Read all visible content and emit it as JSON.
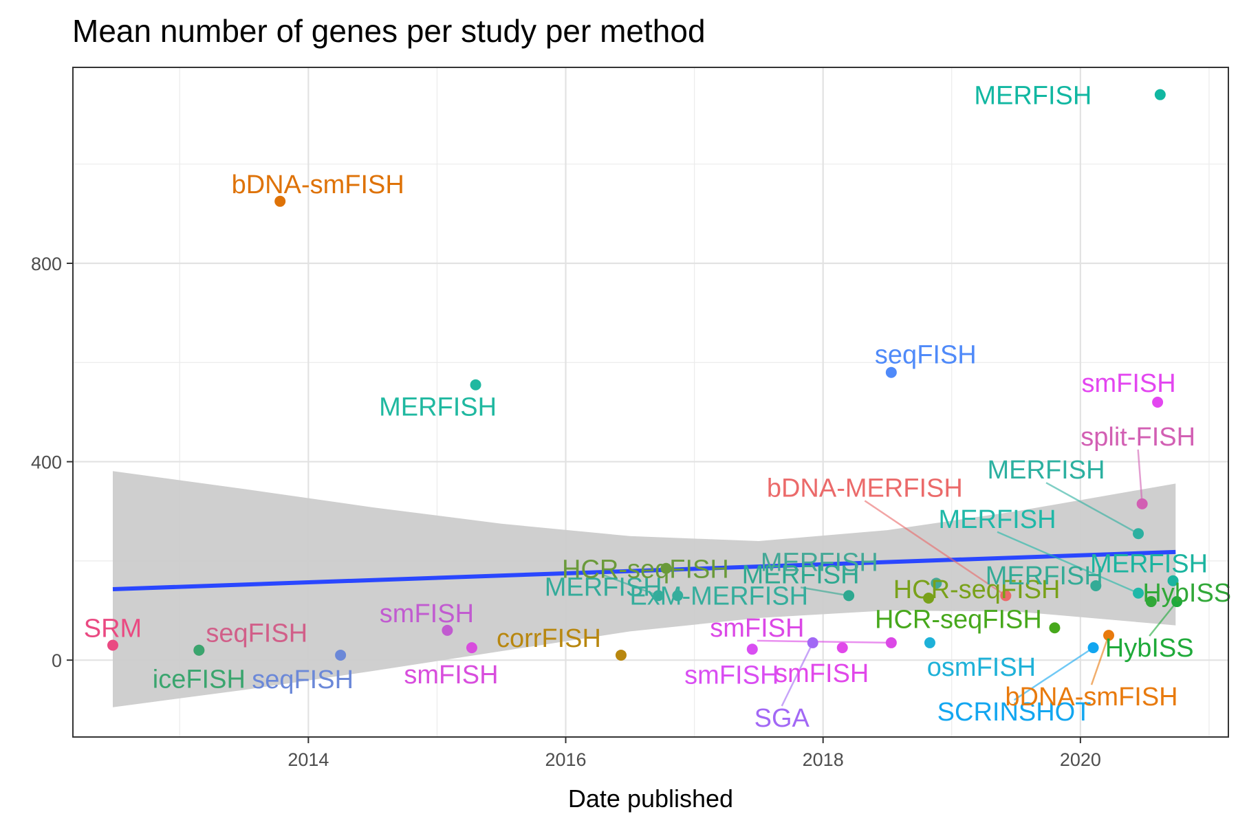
{
  "chart_data": {
    "type": "scatter",
    "title": "Mean number of genes per study per method",
    "xlabel": "Date published",
    "ylabel": "",
    "xlim": [
      2012.17,
      2021.15
    ],
    "ylim": [
      -155,
      1195
    ],
    "x_ticks": [
      2014,
      2016,
      2018,
      2020
    ],
    "x_tick_labels": [
      "2014",
      "2016",
      "2018",
      "2020"
    ],
    "y_ticks": [
      0,
      400,
      800
    ],
    "y_tick_labels": [
      "0",
      "400",
      "800"
    ],
    "grid": true,
    "legend": "none",
    "trend_line": {
      "method": "linear",
      "x": [
        2012.48,
        2020.74
      ],
      "y": [
        143,
        218
      ],
      "color": "#2a47ff"
    },
    "confidence_band": {
      "x": [
        2012.48,
        2013.5,
        2014.5,
        2015.5,
        2016.5,
        2017.5,
        2018.5,
        2019.5,
        2020.74
      ],
      "lower": [
        -95,
        -60,
        -22,
        18,
        58,
        85,
        100,
        98,
        70
      ],
      "upper": [
        381,
        345,
        308,
        275,
        250,
        240,
        262,
        300,
        356
      ],
      "color": "#cccccc"
    },
    "points": [
      {
        "x": 2012.48,
        "y": 30,
        "label": "SRM",
        "color": "#ea4a82"
      },
      {
        "x": 2013.15,
        "y": 20,
        "label": "seqFISH",
        "color": "#d15f89"
      },
      {
        "x": 2013.15,
        "y": 20,
        "label": "iceFISH",
        "color": "#3aa56e"
      },
      {
        "x": 2013.78,
        "y": 925,
        "label": "bDNA-smFISH",
        "color": "#de7207"
      },
      {
        "x": 2014.25,
        "y": 10,
        "label": "seqFISH",
        "color": "#6b88d8"
      },
      {
        "x": 2015.08,
        "y": 60,
        "label": "smFISH",
        "color": "#c15bd0"
      },
      {
        "x": 2015.27,
        "y": 25,
        "label": "smFISH",
        "color": "#d84ddd"
      },
      {
        "x": 2015.3,
        "y": 555,
        "label": "MERFISH",
        "color": "#1fb8a0"
      },
      {
        "x": 2016.43,
        "y": 10,
        "label": "corrFISH",
        "color": "#b8870f"
      },
      {
        "x": 2016.72,
        "y": 130,
        "label": "MERFISH",
        "color": "#34ab9a"
      },
      {
        "x": 2016.78,
        "y": 185,
        "label": "HCR-seqFISH",
        "color": "#6a9a3a"
      },
      {
        "x": 2016.87,
        "y": 130,
        "label": "ExM-MERFISH",
        "color": "#35ad9c"
      },
      {
        "x": 2017.45,
        "y": 22,
        "label": "smFISH",
        "color": "#d94ef2"
      },
      {
        "x": 2017.92,
        "y": 35,
        "label": "SGA",
        "color": "#a268f5"
      },
      {
        "x": 2018.15,
        "y": 25,
        "label": "smFISH",
        "color": "#e148ea"
      },
      {
        "x": 2018.2,
        "y": 130,
        "label": "MERFISH",
        "color": "#2ea890"
      },
      {
        "x": 2018.53,
        "y": 580,
        "label": "seqFISH",
        "color": "#4f8af9"
      },
      {
        "x": 2018.53,
        "y": 35,
        "label": "smFISH",
        "color": "#db48e6"
      },
      {
        "x": 2018.82,
        "y": 125,
        "label": "HCR-seqFISH",
        "color": "#79a11a"
      },
      {
        "x": 2018.83,
        "y": 35,
        "label": "osmFISH",
        "color": "#1eb1d8"
      },
      {
        "x": 2018.88,
        "y": 155,
        "label": "MERFISH",
        "color": "#44a896"
      },
      {
        "x": 2019.42,
        "y": 130,
        "label": "bDNA-MERFISH",
        "color": "#eb6a6a"
      },
      {
        "x": 2019.8,
        "y": 65,
        "label": "HCR-seqFISH",
        "color": "#47a81c"
      },
      {
        "x": 2020.1,
        "y": 25,
        "label": "SCRINSHOT",
        "color": "#12a6f0"
      },
      {
        "x": 2020.12,
        "y": 150,
        "label": "MERFISH",
        "color": "#34ab96"
      },
      {
        "x": 2020.22,
        "y": 50,
        "label": "bDNA-smFISH",
        "color": "#e87a0d"
      },
      {
        "x": 2020.45,
        "y": 255,
        "label": "MERFISH",
        "color": "#2cb0a0"
      },
      {
        "x": 2020.45,
        "y": 135,
        "label": "MERFISH",
        "color": "#1fb8a8"
      },
      {
        "x": 2020.48,
        "y": 315,
        "label": "split-FISH",
        "color": "#d25fb3"
      },
      {
        "x": 2020.55,
        "y": 118,
        "label": "HybISS",
        "color": "#31a838"
      },
      {
        "x": 2020.6,
        "y": 520,
        "label": "smFISH",
        "color": "#e346f0"
      },
      {
        "x": 2020.62,
        "y": 1140,
        "label": "MERFISH",
        "color": "#11b7a1"
      },
      {
        "x": 2020.72,
        "y": 160,
        "label": "MERFISH",
        "color": "#1bb49f"
      },
      {
        "x": 2020.75,
        "y": 118,
        "label": "HybISS",
        "color": "#1faa3a"
      }
    ]
  }
}
